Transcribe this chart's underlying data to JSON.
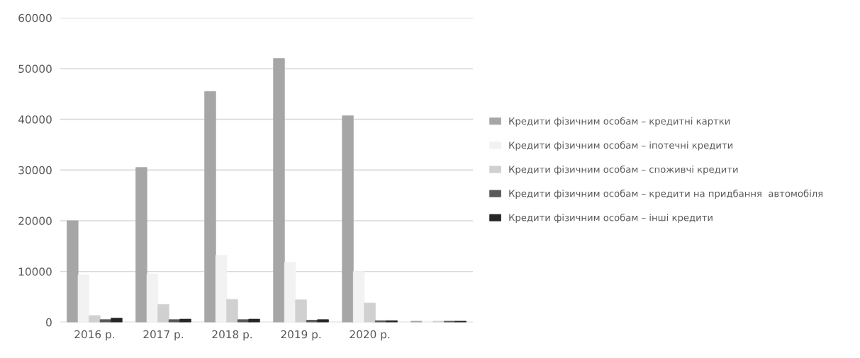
{
  "chart_data": {
    "type": "bar",
    "categories": [
      "2016 р.",
      "2017 р.",
      "2018 р.",
      "2019 р.",
      "2020 р.",
      null
    ],
    "series": [
      {
        "name": "Кредити фізичним особам – кредитні картки",
        "color": "#a6a6a6",
        "values": [
          20000,
          30500,
          45500,
          52000,
          40700,
          200
        ]
      },
      {
        "name": "Кредити фізичним особам – іпотечні кредити",
        "color": "#f2f2f2",
        "values": [
          9300,
          9500,
          13200,
          11800,
          10000,
          200
        ]
      },
      {
        "name": "Кредити фізичним особам – споживчі кредити",
        "color": "#d0d0d0",
        "values": [
          1300,
          3500,
          4500,
          4400,
          3800,
          200
        ]
      },
      {
        "name": "Кредити фізичним особам – кредити на придбання  автомобіля",
        "color": "#595959",
        "values": [
          500,
          500,
          500,
          400,
          300,
          200
        ]
      },
      {
        "name": "Кредити фізичним особам – інші кредити",
        "color": "#262626",
        "values": [
          800,
          600,
          600,
          500,
          300,
          200
        ]
      }
    ],
    "ylim": [
      0,
      60000
    ],
    "yticks": [
      0,
      10000,
      20000,
      30000,
      40000,
      50000,
      60000
    ],
    "grid": "y",
    "legend": "right"
  }
}
